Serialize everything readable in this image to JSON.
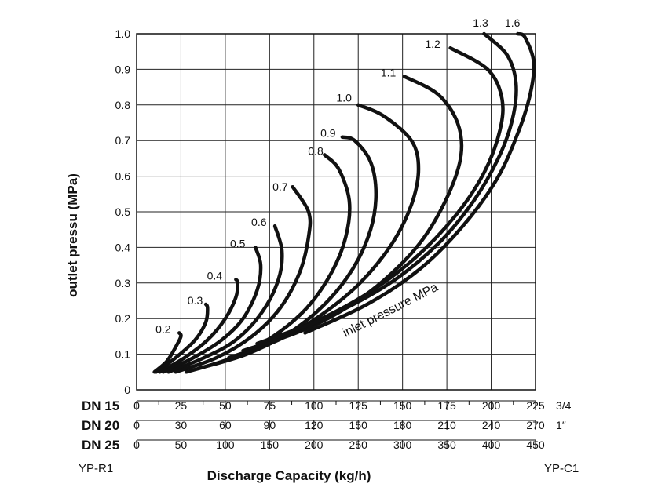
{
  "chart_data": {
    "type": "line",
    "ylabel": "outlet pressu (MPa)",
    "xlabel": "Discharge Capacity (kg/h)",
    "ylim": [
      0,
      1.0
    ],
    "xlim": [
      0,
      225
    ],
    "y_ticks": [
      "0",
      "0.1",
      "0.2",
      "0.3",
      "0.4",
      "0.5",
      "0.6",
      "0.7",
      "0.8",
      "0.9",
      "1.0"
    ],
    "grid": true,
    "x_scales": [
      {
        "name": "DN 15",
        "suffix": "3/4",
        "ticks": [
          "0",
          "25",
          "50",
          "75",
          "100",
          "125",
          "150",
          "175",
          "200",
          "225"
        ]
      },
      {
        "name": "DN 20",
        "suffix": "1″",
        "ticks": [
          "0",
          "30",
          "60",
          "90",
          "120",
          "150",
          "180",
          "210",
          "240",
          "270"
        ]
      },
      {
        "name": "DN 25",
        "suffix": "",
        "ticks": [
          "0",
          "50",
          "100",
          "150",
          "200",
          "250",
          "300",
          "350",
          "400",
          "450"
        ]
      }
    ],
    "left_model": "YP-R1",
    "right_model": "YP-C1",
    "annotation": "inlet pressure MPa",
    "series": [
      {
        "name": "0.2",
        "points": [
          [
            10,
            0.05
          ],
          [
            17,
            0.08
          ],
          [
            22,
            0.12
          ],
          [
            25,
            0.15
          ],
          [
            24,
            0.16
          ]
        ]
      },
      {
        "name": "0.3",
        "points": [
          [
            11,
            0.05
          ],
          [
            22,
            0.09
          ],
          [
            33,
            0.14
          ],
          [
            39,
            0.19
          ],
          [
            40,
            0.23
          ],
          [
            39,
            0.24
          ]
        ]
      },
      {
        "name": "0.4",
        "points": [
          [
            13,
            0.05
          ],
          [
            27,
            0.09
          ],
          [
            40,
            0.14
          ],
          [
            50,
            0.2
          ],
          [
            56,
            0.26
          ],
          [
            57,
            0.3
          ],
          [
            56,
            0.31
          ]
        ]
      },
      {
        "name": "0.5",
        "points": [
          [
            15,
            0.05
          ],
          [
            32,
            0.09
          ],
          [
            48,
            0.14
          ],
          [
            60,
            0.2
          ],
          [
            68,
            0.28
          ],
          [
            70,
            0.35
          ],
          [
            67,
            0.4
          ]
        ]
      },
      {
        "name": "0.6",
        "points": [
          [
            18,
            0.05
          ],
          [
            38,
            0.09
          ],
          [
            56,
            0.14
          ],
          [
            71,
            0.22
          ],
          [
            80,
            0.31
          ],
          [
            82,
            0.39
          ],
          [
            78,
            0.46
          ]
        ]
      },
      {
        "name": "0.7",
        "points": [
          [
            22,
            0.05
          ],
          [
            45,
            0.09
          ],
          [
            65,
            0.15
          ],
          [
            81,
            0.23
          ],
          [
            92,
            0.33
          ],
          [
            97,
            0.43
          ],
          [
            97,
            0.5
          ],
          [
            88,
            0.57
          ]
        ]
      },
      {
        "name": "0.8",
        "points": [
          [
            28,
            0.05
          ],
          [
            54,
            0.09
          ],
          [
            77,
            0.15
          ],
          [
            96,
            0.23
          ],
          [
            110,
            0.33
          ],
          [
            118,
            0.43
          ],
          [
            120,
            0.53
          ],
          [
            114,
            0.62
          ],
          [
            106,
            0.66
          ]
        ]
      },
      {
        "name": "0.9",
        "points": [
          [
            35,
            0.06
          ],
          [
            62,
            0.1
          ],
          [
            86,
            0.16
          ],
          [
            106,
            0.24
          ],
          [
            122,
            0.34
          ],
          [
            132,
            0.45
          ],
          [
            135,
            0.55
          ],
          [
            132,
            0.64
          ],
          [
            123,
            0.7
          ],
          [
            116,
            0.71
          ]
        ]
      },
      {
        "name": "1.0",
        "points": [
          [
            52,
            0.09
          ],
          [
            80,
            0.14
          ],
          [
            104,
            0.21
          ],
          [
            126,
            0.3
          ],
          [
            144,
            0.41
          ],
          [
            155,
            0.52
          ],
          [
            159,
            0.62
          ],
          [
            155,
            0.7
          ],
          [
            139,
            0.77
          ],
          [
            125,
            0.8
          ]
        ]
      },
      {
        "name": "1.1",
        "points": [
          [
            60,
            0.11
          ],
          [
            90,
            0.16
          ],
          [
            115,
            0.22
          ],
          [
            140,
            0.31
          ],
          [
            161,
            0.42
          ],
          [
            176,
            0.55
          ],
          [
            183,
            0.66
          ],
          [
            181,
            0.75
          ],
          [
            170,
            0.83
          ],
          [
            151,
            0.88
          ]
        ]
      },
      {
        "name": "1.2",
        "points": [
          [
            68,
            0.13
          ],
          [
            100,
            0.19
          ],
          [
            130,
            0.27
          ],
          [
            157,
            0.37
          ],
          [
            180,
            0.49
          ],
          [
            196,
            0.61
          ],
          [
            205,
            0.73
          ],
          [
            206,
            0.82
          ],
          [
            198,
            0.9
          ],
          [
            177,
            0.96
          ]
        ]
      },
      {
        "name": "1.3",
        "points": [
          [
            75,
            0.14
          ],
          [
            110,
            0.21
          ],
          [
            143,
            0.3
          ],
          [
            170,
            0.41
          ],
          [
            190,
            0.53
          ],
          [
            204,
            0.65
          ],
          [
            212,
            0.76
          ],
          [
            214,
            0.86
          ],
          [
            209,
            0.94
          ],
          [
            196,
            1.0
          ]
        ]
      },
      {
        "name": "1.6",
        "points": [
          [
            95,
            0.16
          ],
          [
            130,
            0.24
          ],
          [
            160,
            0.34
          ],
          [
            184,
            0.46
          ],
          [
            203,
            0.59
          ],
          [
            215,
            0.72
          ],
          [
            222,
            0.83
          ],
          [
            224,
            0.92
          ],
          [
            219,
            0.99
          ],
          [
            215,
            1.0
          ]
        ]
      }
    ],
    "series_label_positions_data": [
      {
        "name": "0.2",
        "x": 15,
        "y": 0.16
      },
      {
        "name": "0.3",
        "x": 33,
        "y": 0.24
      },
      {
        "name": "0.4",
        "x": 44,
        "y": 0.31
      },
      {
        "name": "0.5",
        "x": 57,
        "y": 0.4
      },
      {
        "name": "0.6",
        "x": 69,
        "y": 0.46
      },
      {
        "name": "0.7",
        "x": 81,
        "y": 0.56
      },
      {
        "name": "0.8",
        "x": 101,
        "y": 0.66
      },
      {
        "name": "0.9",
        "x": 108,
        "y": 0.71
      },
      {
        "name": "1.0",
        "x": 117,
        "y": 0.81
      },
      {
        "name": "1.1",
        "x": 142,
        "y": 0.88
      },
      {
        "name": "1.2",
        "x": 167,
        "y": 0.96
      },
      {
        "name": "1.3",
        "x": 194,
        "y": 1.02
      },
      {
        "name": "1.6",
        "x": 212,
        "y": 1.02
      }
    ]
  }
}
